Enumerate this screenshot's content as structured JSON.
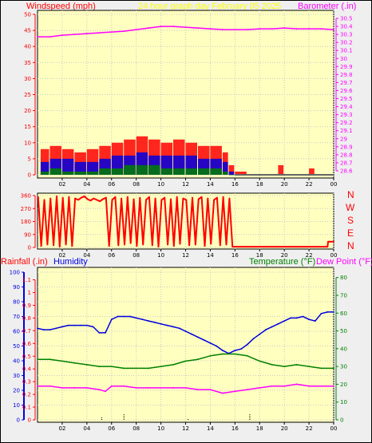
{
  "colors": {
    "outer_bg": "#EFEFEF",
    "plot_bg": "#FFFFC0",
    "grid": "#C8C8C8",
    "red": "#FF0000",
    "blue": "#0000E0",
    "green": "#008000",
    "magenta": "#FF00FF",
    "yellow": "#FFFF00",
    "grey": "#666666",
    "black": "#000000"
  },
  "header": {
    "windspeed": "Windspeed (mph)",
    "title": "24 hour graph day   February 05 2025",
    "barometer": "Barometer (.in)"
  },
  "wind_dir_labels": [
    "N",
    "W",
    "S",
    "E",
    "N"
  ],
  "lower_header": {
    "rainfall": "Rainfall (.in)",
    "humidity": "Humidity",
    "temperature": "Temperature (°F)",
    "dewpoint": "Dew Point (°F)"
  },
  "chart_data": [
    {
      "type": "line",
      "name": "wind-and-barometer",
      "title": "24 hour graph day   February 05 2025",
      "x_ticks": [
        "02",
        "04",
        "06",
        "08",
        "10",
        "12",
        "14",
        "16",
        "18",
        "20",
        "22",
        "00"
      ],
      "xlim": [
        0,
        24
      ],
      "y_left_label": "Windspeed (mph)",
      "y_left_ticks": [
        0,
        5,
        10,
        15,
        20,
        25,
        30,
        35,
        40,
        45,
        50
      ],
      "y_left_lim": [
        0,
        50
      ],
      "y_right_label": "Barometer (.in)",
      "y_right_ticks": [
        28.6,
        28.7,
        28.8,
        28.9,
        29.0,
        29.1,
        29.2,
        29.3,
        29.4,
        29.5,
        29.6,
        29.7,
        29.8,
        29.9,
        30.0,
        30.1,
        30.2,
        30.3,
        30.4,
        30.5
      ],
      "y_right_tick_labels": [
        "28.6",
        "28.7",
        "28.8",
        "28.9",
        "29",
        "29.1",
        "29.2",
        "29.3",
        "29.4",
        "29.5",
        "29.6",
        "29.7",
        "29.8",
        "29.9",
        "30",
        "30.1",
        "30.2",
        "30.3",
        "30.4",
        "30.5"
      ],
      "y_right_lim": [
        28.55,
        30.55
      ],
      "grid": true,
      "series": [
        {
          "axis": "right",
          "color": "#FF00FF",
          "x": [
            0,
            1,
            2,
            3,
            4,
            5,
            6,
            7,
            8,
            9,
            10,
            11,
            12,
            13,
            14,
            15,
            16,
            17,
            18,
            19,
            20,
            21,
            22,
            23,
            24
          ],
          "values": [
            30.27,
            30.27,
            30.29,
            30.3,
            30.31,
            30.32,
            30.33,
            30.34,
            30.36,
            30.38,
            30.4,
            30.4,
            30.39,
            30.38,
            30.37,
            30.36,
            30.36,
            30.36,
            30.37,
            30.37,
            30.38,
            30.37,
            30.37,
            30.37,
            30.36
          ]
        },
        {
          "axis": "left",
          "style": "bars",
          "color": "#FF0000",
          "x": [
            0.25,
            1,
            2,
            3,
            4,
            5,
            6,
            7,
            8,
            9,
            10,
            11,
            12,
            13,
            14,
            15,
            15.5,
            16,
            17,
            18,
            19,
            19.5,
            20,
            21,
            22,
            22.5,
            23,
            24
          ],
          "values": [
            8,
            9,
            8,
            7,
            8,
            9,
            10,
            11,
            12,
            11,
            10,
            11,
            10,
            9,
            9,
            7,
            3,
            1,
            0,
            0,
            0,
            3,
            0,
            0,
            2,
            0,
            0,
            0
          ]
        },
        {
          "axis": "left",
          "style": "bars",
          "color": "#0000E0",
          "x": [
            0.25,
            1,
            2,
            3,
            4,
            5,
            6,
            7,
            8,
            9,
            10,
            11,
            12,
            13,
            14,
            15,
            15.5,
            16,
            24
          ],
          "values": [
            4,
            5,
            5,
            4,
            4,
            5,
            6,
            6,
            7,
            6,
            6,
            6,
            6,
            5,
            5,
            4,
            1,
            0,
            0
          ]
        },
        {
          "axis": "left",
          "style": "bars",
          "color": "#008000",
          "x": [
            0.25,
            1,
            2,
            3,
            4,
            5,
            6,
            7,
            8,
            9,
            10,
            11,
            12,
            13,
            14,
            15,
            15.5,
            16,
            24
          ],
          "values": [
            1,
            2,
            1,
            1,
            1,
            2,
            2,
            3,
            3,
            3,
            2,
            2,
            2,
            2,
            2,
            1,
            0,
            0,
            0
          ]
        }
      ]
    },
    {
      "type": "line",
      "name": "wind-direction",
      "x_ticks": [
        "02",
        "04",
        "06",
        "08",
        "10",
        "12",
        "14",
        "16",
        "18",
        "20",
        "22",
        "00"
      ],
      "xlim": [
        0,
        24
      ],
      "y_ticks": [
        0,
        90,
        180,
        270,
        360
      ],
      "ylim": [
        0,
        360
      ],
      "right_labels": [
        "N",
        "W",
        "S",
        "E",
        "N"
      ],
      "grid": true,
      "series": [
        {
          "color": "#FF0000",
          "x": [
            0.05,
            0.3,
            0.55,
            0.8,
            1.05,
            1.3,
            1.55,
            1.8,
            2.05,
            2.3,
            2.55,
            2.8,
            3.05,
            3.3,
            3.55,
            3.8,
            4.05,
            4.3,
            4.55,
            4.8,
            5.05,
            5.3,
            5.55,
            5.8,
            6.05,
            6.3,
            6.55,
            6.8,
            7.05,
            7.3,
            7.55,
            7.8,
            8.05,
            8.3,
            8.55,
            8.8,
            9.05,
            9.3,
            9.55,
            9.8,
            10.05,
            10.3,
            10.55,
            10.8,
            11.05,
            11.3,
            11.55,
            11.8,
            12.05,
            12.3,
            12.55,
            12.8,
            13.05,
            13.3,
            13.55,
            13.8,
            14.05,
            14.3,
            14.55,
            14.8,
            15.05,
            15.3,
            15.55,
            15.8,
            20,
            23.5,
            23.55,
            24
          ],
          "values": [
            350,
            10,
            330,
            20,
            340,
            15,
            355,
            5,
            345,
            20,
            350,
            10,
            340,
            330,
            345,
            355,
            335,
            325,
            340,
            330,
            320,
            335,
            345,
            10,
            330,
            350,
            15,
            340,
            20,
            350,
            30,
            335,
            10,
            345,
            20,
            330,
            350,
            15,
            340,
            5,
            330,
            345,
            20,
            335,
            10,
            350,
            25,
            340,
            330,
            15,
            345,
            20,
            335,
            350,
            10,
            340,
            25,
            330,
            345,
            15,
            350,
            20,
            340,
            5,
            5,
            5,
            40,
            40
          ]
        }
      ]
    },
    {
      "type": "line",
      "name": "humidity-temperature",
      "x_ticks": [
        "02",
        "04",
        "06",
        "08",
        "10",
        "12",
        "14",
        "16",
        "18",
        "20",
        "22",
        "00"
      ],
      "xlim": [
        0,
        24
      ],
      "y_left_outer_label": "Rainfall (.in)",
      "y_left_outer_ticks": [
        0,
        10,
        20,
        30,
        40,
        50,
        60,
        70,
        80,
        90,
        100
      ],
      "y_left_outer_lim": [
        0,
        100
      ],
      "y_left_label": "Humidity",
      "y_left_ticks": [
        0,
        0.1,
        0.2,
        0.3,
        0.4,
        0.5,
        0.6,
        0.7,
        0.8,
        0.9,
        1.0,
        1.1
      ],
      "y_left_tick_labels": [
        "0",
        "0.1",
        "0.2",
        "0.3",
        "0.4",
        "0.5",
        "0.6",
        "0.7",
        "0.8",
        "0.9",
        "1",
        "1.1"
      ],
      "y_left_lim": [
        0,
        1.16
      ],
      "y_right_label": "Temperature (°F)",
      "y_right_label2": "Dew Point (°F)",
      "y_right_ticks": [
        0,
        10,
        20,
        30,
        40,
        50,
        60,
        70,
        80
      ],
      "y_right_lim": [
        0,
        83
      ],
      "grid": true,
      "series": [
        {
          "axis": "left_outer",
          "color": "#0000E0",
          "x": [
            0,
            0.5,
            1,
            1.5,
            2,
            2.5,
            3,
            3.5,
            4,
            4.5,
            5,
            5.5,
            6,
            6.5,
            7,
            7.5,
            8,
            8.5,
            9,
            9.5,
            10,
            10.5,
            11,
            11.5,
            12,
            12.5,
            13,
            13.5,
            14,
            14.5,
            15,
            15.5,
            16,
            16.5,
            17,
            17.5,
            18,
            18.5,
            19,
            19.5,
            20,
            20.5,
            21,
            21.5,
            22,
            22.5,
            23,
            23.5,
            24
          ],
          "values": [
            62,
            61,
            61,
            62,
            63,
            64,
            64,
            64,
            64,
            63,
            59,
            59,
            68,
            70,
            70,
            70,
            69,
            68,
            67,
            66,
            65,
            64,
            63,
            62,
            60,
            58,
            56,
            54,
            52,
            50,
            47,
            45,
            47,
            48,
            51,
            55,
            58,
            61,
            63,
            65,
            67,
            69,
            69,
            70,
            68,
            67,
            72,
            73,
            73
          ]
        },
        {
          "axis": "right",
          "color": "#008000",
          "x": [
            0,
            1,
            2,
            3,
            4,
            5,
            6,
            7,
            8,
            9,
            10,
            11,
            12,
            13,
            14,
            15,
            16,
            17,
            18,
            19,
            20,
            21,
            22,
            23,
            24
          ],
          "values": [
            34,
            34,
            33,
            32,
            31,
            30,
            30,
            29,
            29,
            29,
            30,
            31,
            33,
            34,
            36,
            37,
            37,
            36,
            33,
            31,
            30,
            31,
            30,
            29,
            29
          ]
        },
        {
          "axis": "right",
          "color": "#FF00FF",
          "x": [
            0,
            1,
            2,
            3,
            4,
            5,
            5.5,
            6,
            7,
            8,
            9,
            10,
            11,
            12,
            13,
            14,
            15,
            16,
            17,
            18,
            19,
            20,
            21,
            22,
            23,
            24
          ],
          "values": [
            19,
            19,
            18,
            18,
            18,
            17,
            16,
            19,
            19,
            18,
            18,
            18,
            18,
            18,
            17,
            17,
            15,
            16,
            17,
            18,
            19,
            19,
            20,
            19,
            19,
            19
          ]
        },
        {
          "axis": "left_outer",
          "style": "stems",
          "color": "#000000",
          "x": [
            5.2,
            7,
            12.2,
            17.2
          ],
          "values": [
            2,
            4,
            1,
            4
          ]
        }
      ]
    }
  ]
}
